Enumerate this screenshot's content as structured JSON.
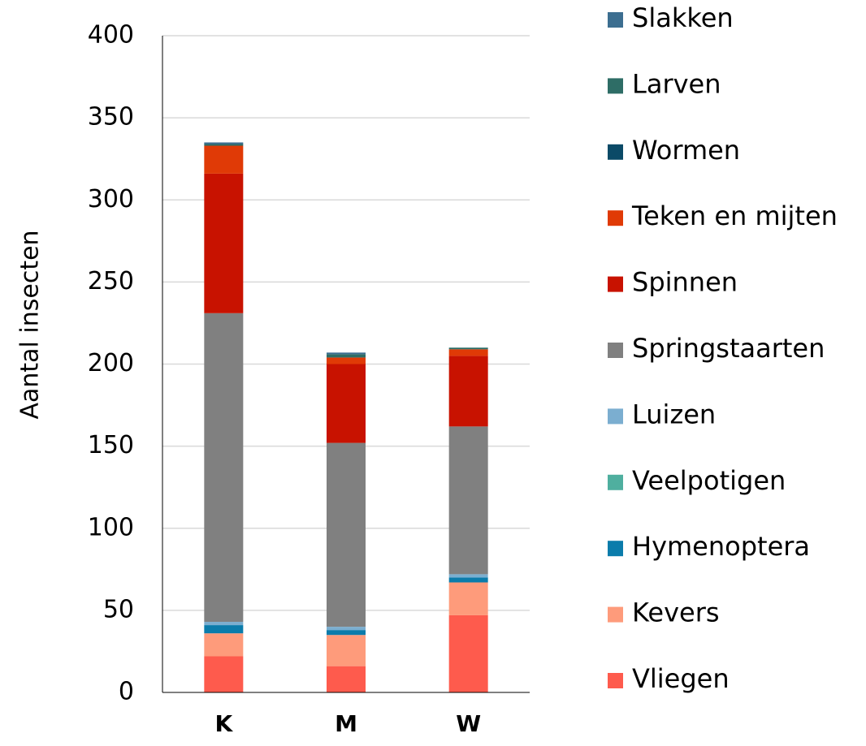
{
  "chart_data": {
    "type": "stacked_bar",
    "y_label": "Aantal insecten",
    "categories": [
      "K",
      "M",
      "W"
    ],
    "series": [
      {
        "name": "Vliegen",
        "color": "#fe5b4d",
        "values": [
          22,
          16,
          47
        ]
      },
      {
        "name": "Kevers",
        "color": "#fe9b7b",
        "values": [
          14,
          19,
          20
        ]
      },
      {
        "name": "Hymenoptera",
        "color": "#0b7cab",
        "values": [
          5,
          3,
          3
        ]
      },
      {
        "name": "Veelpotigen",
        "color": "#4faf9f",
        "values": [
          0,
          0,
          0
        ]
      },
      {
        "name": "Luizen",
        "color": "#7baed0",
        "values": [
          2,
          2,
          2
        ]
      },
      {
        "name": "Springstaarten",
        "color": "#808080",
        "values": [
          188,
          112,
          90
        ]
      },
      {
        "name": "Spinnen",
        "color": "#c81200",
        "values": [
          85,
          48,
          43
        ]
      },
      {
        "name": "Teken en mijten",
        "color": "#e03a06",
        "values": [
          17,
          4,
          4
        ]
      },
      {
        "name": "Wormen",
        "color": "#0b4a67",
        "values": [
          0,
          0,
          0
        ]
      },
      {
        "name": "Larven",
        "color": "#2e6d66",
        "values": [
          1,
          2,
          1
        ]
      },
      {
        "name": "Slakken",
        "color": "#3c6e90",
        "values": [
          1,
          1,
          0
        ]
      }
    ],
    "ylim": [
      0,
      400
    ],
    "yticks": [
      0,
      50,
      100,
      150,
      200,
      250,
      300,
      350,
      400
    ],
    "grid": true,
    "legend": "right"
  }
}
